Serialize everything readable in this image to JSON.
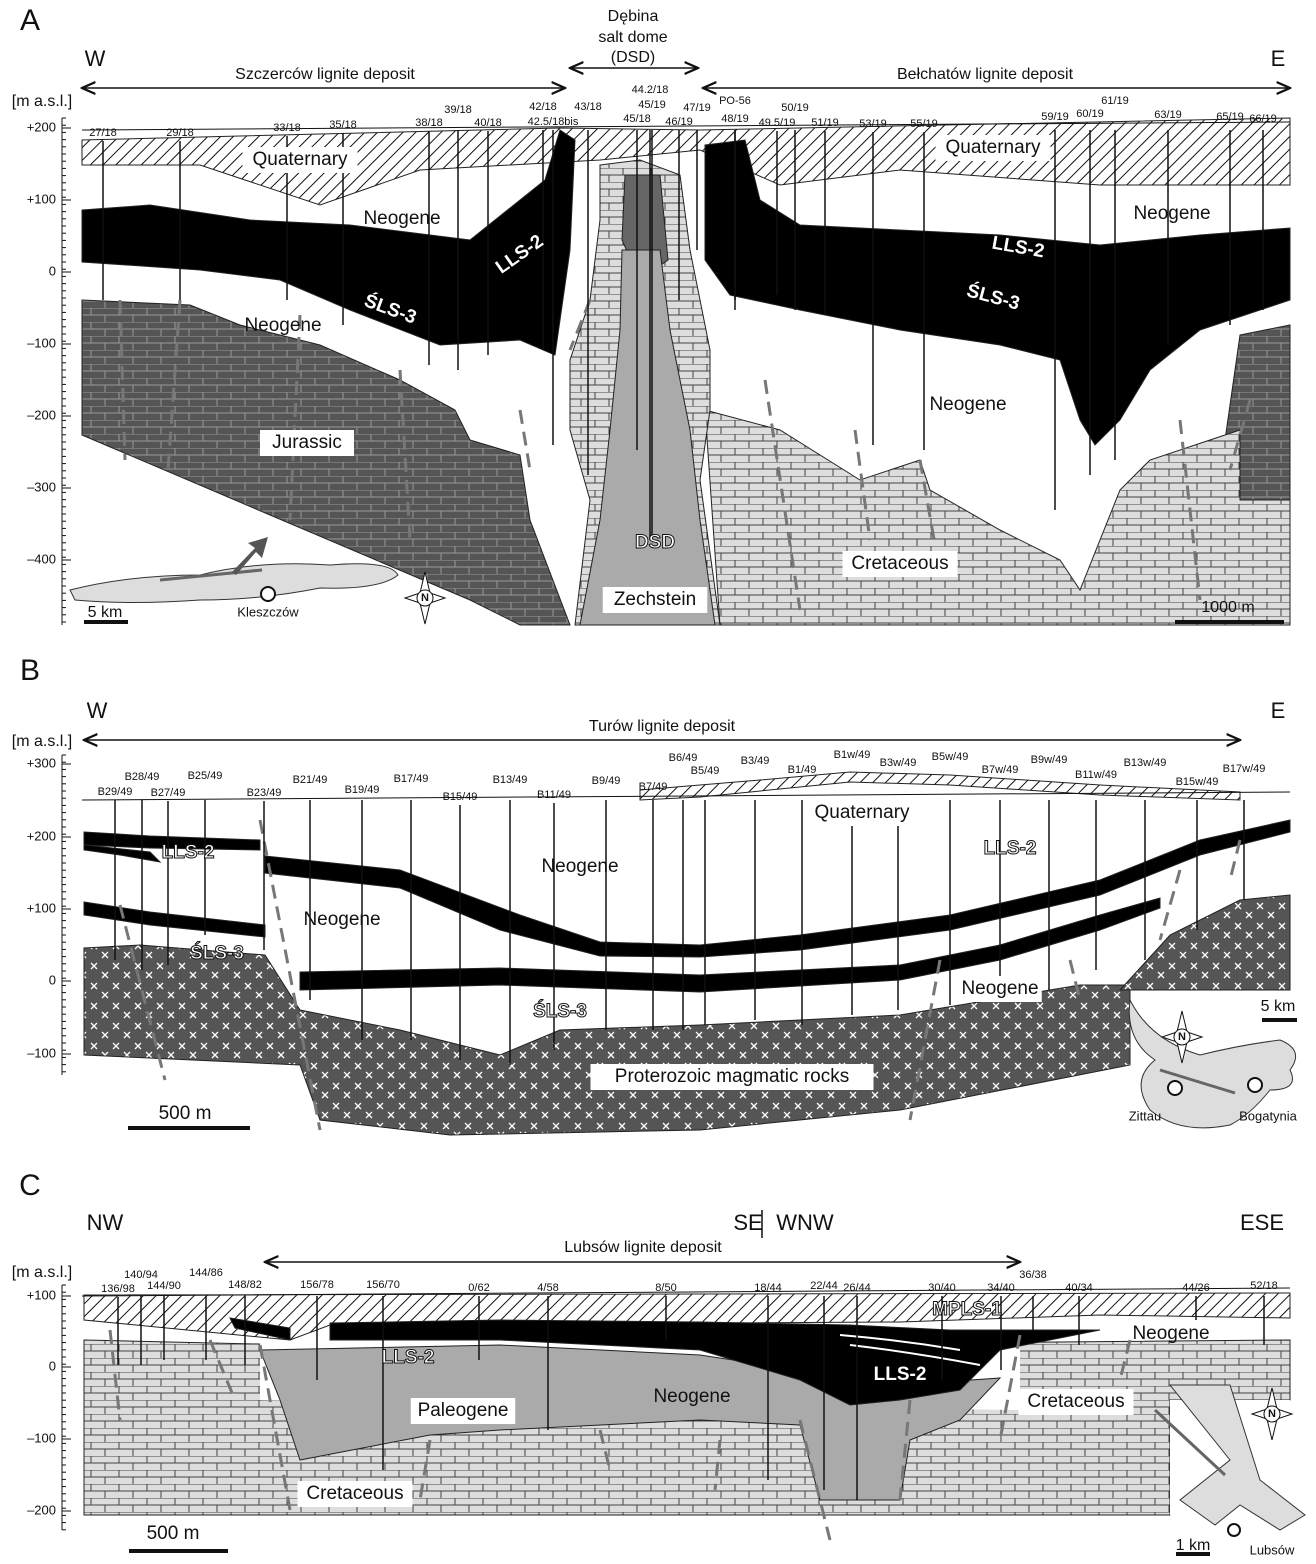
{
  "panels": [
    {
      "letter": "A",
      "directions": [
        "W",
        "E"
      ],
      "axis_unit": "[m a.s.l.]",
      "depth_ticks": [
        "+200",
        "+100",
        "0",
        "–100",
        "–200",
        "–300",
        "–400"
      ],
      "deposits": [
        "Szczerców lignite deposit",
        "Bełchatów lignite deposit"
      ],
      "salt_dome": [
        "Dębina",
        "salt dome",
        "(DSD)"
      ],
      "boreholes": [
        "27/18",
        "29/18",
        "33/18",
        "35/18",
        "38/18",
        "39/18",
        "40/18",
        "42/18",
        "42.5/18bis",
        "43/18",
        "44.2/18",
        "45/19",
        "45/18",
        "46/19",
        "47/19",
        "PO-56",
        "48/19",
        "49.5/19",
        "50/19",
        "51/19",
        "53/19",
        "55/19",
        "59/19",
        "60/19",
        "61/19",
        "63/19",
        "65/19",
        "66/19"
      ],
      "units": [
        "Quaternary",
        "Quaternary",
        "Neogene",
        "Neogene",
        "Neogene",
        "Neogene",
        "LLS-2",
        "LLS-2",
        "ŚLS-3",
        "ŚLS-3",
        "Jurassic",
        "DSD",
        "Zechstein",
        "Cretaceous"
      ],
      "scale_bars": [
        "5 km",
        "1000 m"
      ],
      "places": [
        "Kleszczów"
      ],
      "north": "N"
    },
    {
      "letter": "B",
      "directions": [
        "W",
        "E"
      ],
      "axis_unit": "[m a.s.l.]",
      "depth_ticks": [
        "+300",
        "+200",
        "+100",
        "0",
        "–100"
      ],
      "deposits": [
        "Turów lignite deposit"
      ],
      "boreholes": [
        "B29/49",
        "B28/49",
        "B27/49",
        "B25/49",
        "B23/49",
        "B21/49",
        "B19/49",
        "B17/49",
        "B15/49",
        "B13/49",
        "B11/49",
        "B9/49",
        "B7/49",
        "B6/49",
        "B5/49",
        "B3/49",
        "B1/49",
        "B1w/49",
        "B3w/49",
        "B5w/49",
        "B7w/49",
        "B9w/49",
        "B11w/49",
        "B13w/49",
        "B15w/49",
        "B17w/49"
      ],
      "units": [
        "LLS-2",
        "ŚLS-3",
        "Neogene",
        "Neogene",
        "ŚLS-3",
        "Quaternary",
        "LLS-2",
        "Neogene",
        "Proterozoic magmatic rocks"
      ],
      "scale_bars": [
        "500 m",
        "5 km"
      ],
      "places": [
        "Zittau",
        "Bogatynia"
      ],
      "north": "N"
    },
    {
      "letter": "C",
      "directions": [
        "NW",
        "SE",
        "WNW",
        "ESE"
      ],
      "axis_unit": "[m a.s.l.]",
      "depth_ticks": [
        "+100",
        "0",
        "–100",
        "–200"
      ],
      "deposits": [
        "Lubsów lignite deposit"
      ],
      "boreholes": [
        "136/98",
        "140/94",
        "144/90",
        "144/86",
        "148/82",
        "156/78",
        "156/70",
        "0/62",
        "4/58",
        "8/50",
        "18/44",
        "22/44",
        "26/44",
        "30/40",
        "34/40",
        "36/38",
        "40/34",
        "44/26",
        "52/18"
      ],
      "units": [
        "MPLS-1",
        "LLS-2",
        "LLS-2",
        "Neogene",
        "Neogene",
        "Paleogene",
        "Cretaceous",
        "Cretaceous"
      ],
      "scale_bars": [
        "500 m",
        "1 km"
      ],
      "places": [
        "Lubsów"
      ],
      "north": "N"
    }
  ]
}
